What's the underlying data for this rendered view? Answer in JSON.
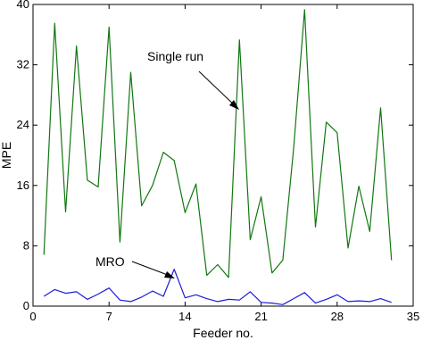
{
  "chart_data": {
    "type": "line",
    "xlabel": "Feeder no.",
    "ylabel": "MPE",
    "xlim": [
      0,
      35
    ],
    "ylim": [
      0,
      40
    ],
    "xticks": [
      0,
      7,
      14,
      21,
      28,
      35
    ],
    "yticks": [
      0,
      8,
      16,
      24,
      32,
      40
    ],
    "grid": false,
    "series": [
      {
        "name": "Single run",
        "color": "#117711",
        "x": [
          1,
          2,
          3,
          4,
          5,
          6,
          7,
          8,
          9,
          10,
          11,
          12,
          13,
          14,
          15,
          16,
          17,
          18,
          19,
          20,
          21,
          22,
          23,
          24,
          25,
          26,
          27,
          28,
          29,
          30,
          31,
          32,
          33
        ],
        "y": [
          6.8,
          37.5,
          12.5,
          34.5,
          16.7,
          15.8,
          37,
          8.5,
          31,
          13.3,
          16,
          20.4,
          19.3,
          12.4,
          16.2,
          4.1,
          5.5,
          3.8,
          35.3,
          8.8,
          14.5,
          4.4,
          6.1,
          21,
          39.3,
          10.5,
          24.4,
          23,
          7.7,
          15.9,
          9.9,
          26.3,
          6.1
        ]
      },
      {
        "name": "MRO",
        "color": "#1c1cd6",
        "x": [
          1,
          2,
          3,
          4,
          5,
          6,
          7,
          8,
          9,
          10,
          11,
          12,
          13,
          14,
          15,
          16,
          17,
          18,
          19,
          20,
          21,
          22,
          23,
          24,
          25,
          26,
          27,
          28,
          29,
          30,
          31,
          32,
          33
        ],
        "y": [
          1.3,
          2.2,
          1.7,
          1.9,
          0.9,
          1.6,
          2.4,
          0.8,
          0.6,
          1.2,
          2.0,
          1.3,
          4.9,
          1.1,
          1.5,
          1.0,
          0.6,
          0.9,
          0.8,
          1.9,
          0.5,
          0.4,
          0.2,
          1.0,
          1.8,
          0.4,
          0.9,
          1.5,
          0.6,
          0.7,
          0.6,
          1.0,
          0.5
        ]
      }
    ],
    "annotations": [
      {
        "text": "Single run",
        "series": "Single run"
      },
      {
        "text": "MRO",
        "series": "MRO"
      }
    ]
  }
}
